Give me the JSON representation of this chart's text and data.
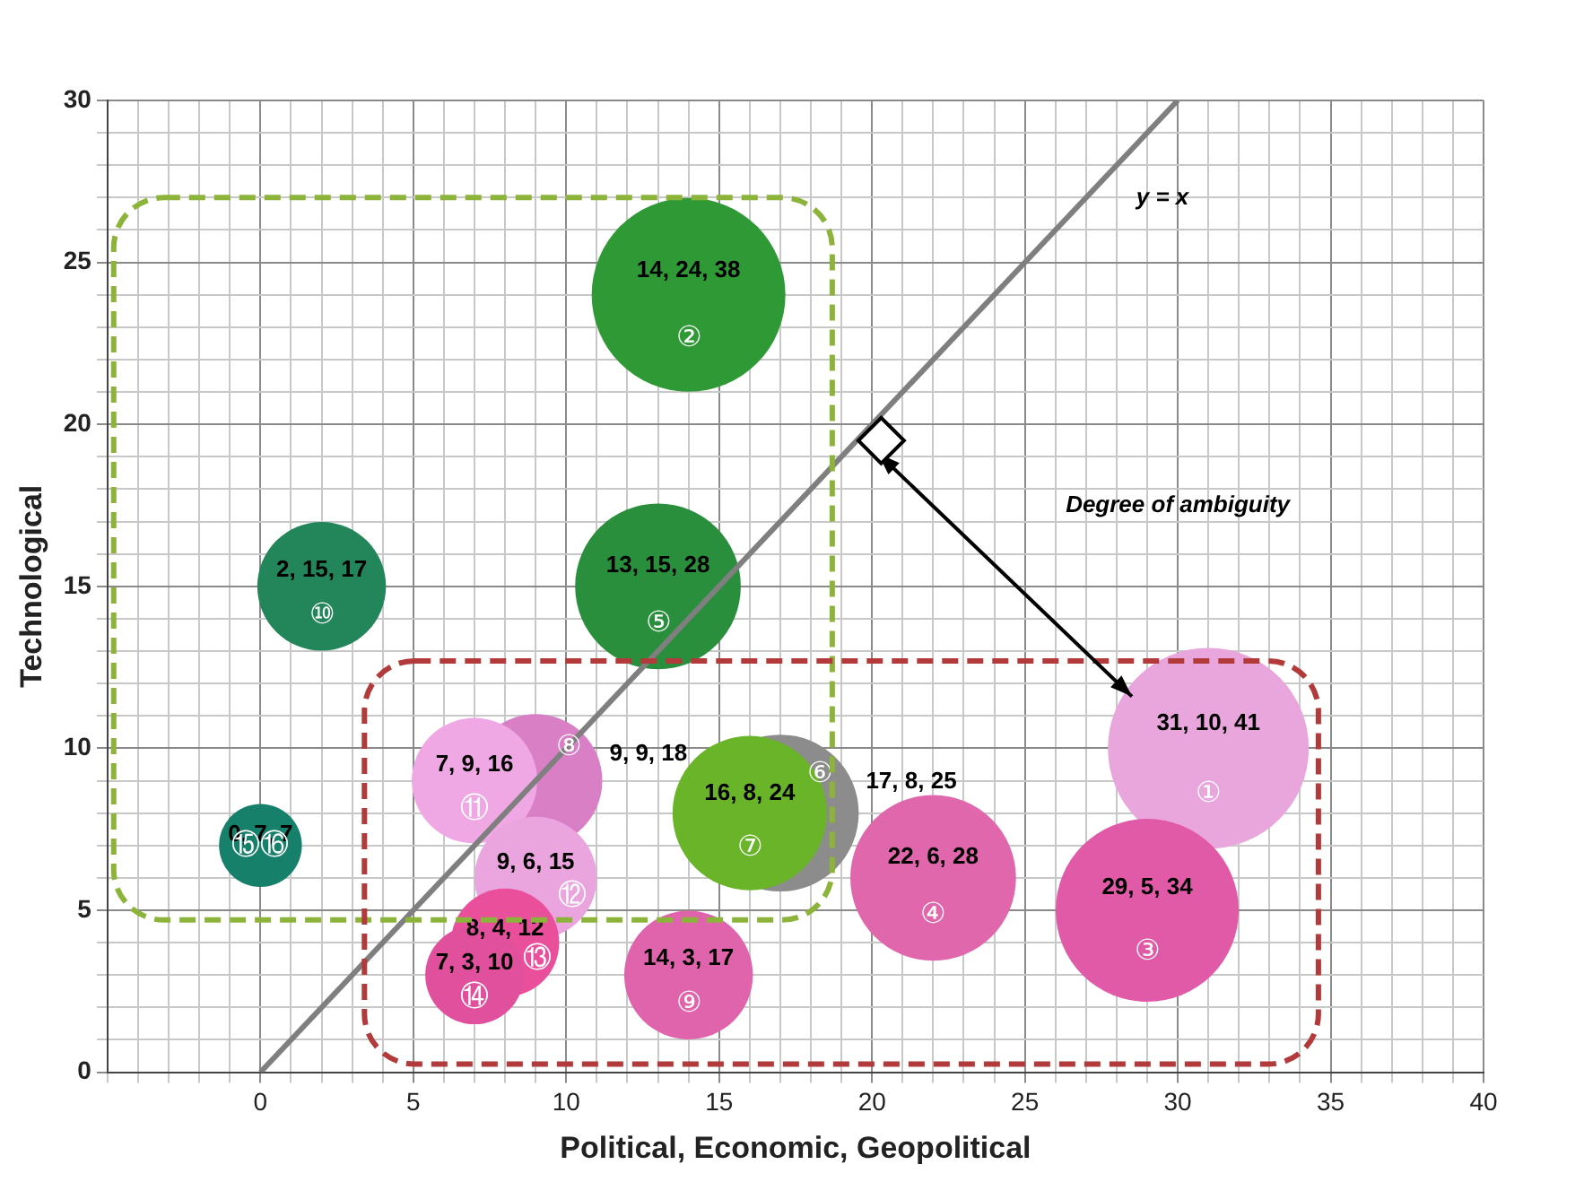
{
  "chart_data": {
    "type": "bubble",
    "xlabel": "Political, Economic, Geopolitical",
    "ylabel": "Technological",
    "xlim": [
      -5,
      40
    ],
    "xticks": [
      0,
      5,
      10,
      15,
      20,
      25,
      30,
      35,
      40
    ],
    "ylim": [
      0,
      30
    ],
    "yticks": [
      0,
      5,
      10,
      15,
      20,
      25,
      30
    ],
    "grid": true,
    "legend": false,
    "series": [
      {
        "x": [
          14,
          13,
          2,
          0,
          null,
          17,
          16,
          31,
          29,
          22,
          14,
          9,
          7,
          9,
          8,
          7
        ],
        "values": [
          24,
          15,
          15,
          7,
          null,
          8,
          8,
          10,
          5,
          6,
          3,
          9,
          9,
          6,
          4,
          3
        ],
        "sizes": [
          0.93,
          0.68,
          0.41,
          0.17,
          null,
          0.61,
          0.59,
          1,
          0.83,
          0.68,
          0.41,
          0.44,
          0.39,
          0.37,
          0.29,
          0.24
        ],
        "colors": [
          "#2f9a35",
          "#2a8f3c",
          "#23865a",
          "#17806a",
          "#17806a",
          "#8c8c8c",
          "#6ab42a",
          "#e8a6dc",
          "#e05aa8",
          "#e067ac",
          "#e064ac",
          "#d97fc6",
          "#f0a8e4",
          "#eaa4de",
          "#ea4f9c",
          "#e0509c"
        ],
        "value_labels": [
          "14, 24, 38",
          "13, 15, 28",
          "2, 15, 17",
          "0, 7, 7",
          null,
          "17, 8, 25",
          "16, 8, 24",
          "31, 10, 41",
          "29, 5, 34",
          "22, 6, 28",
          "14, 3, 17",
          "9, 9, 18",
          "7, 9, 16",
          "9, 6, 15",
          "8, 4, 12",
          "7, 3, 10"
        ]
      },
      {
        "type": "line",
        "x": [
          0,
          30
        ],
        "values": [
          0,
          30
        ],
        "color": "#7f7f7f"
      }
    ],
    "annotations": [
      "y = x",
      "Degree of ambiguity",
      {
        "text": "②",
        "x": 14,
        "y": 24
      },
      {
        "text": "⑤",
        "x": 13,
        "y": 15
      },
      {
        "text": "⑩",
        "x": 2,
        "y": 15
      },
      {
        "text": "⑮",
        "x": 0,
        "y": 7
      },
      {
        "text": "⑯",
        "x": 0,
        "y": 7
      },
      {
        "text": "⑥",
        "x": 17,
        "y": 8
      },
      {
        "text": "⑦",
        "x": 16,
        "y": 8
      },
      {
        "text": "①",
        "x": 31,
        "y": 10
      },
      {
        "text": "③",
        "x": 29,
        "y": 5
      },
      {
        "text": "④",
        "x": 22,
        "y": 6
      },
      {
        "text": "⑨",
        "x": 14,
        "y": 3
      },
      {
        "text": "⑧",
        "x": 9,
        "y": 9
      },
      {
        "text": "⑪",
        "x": 7,
        "y": 9
      },
      {
        "text": "⑫",
        "x": 9,
        "y": 6
      },
      {
        "text": "⑬",
        "x": 8,
        "y": 4
      },
      {
        "text": "⑭",
        "x": 7,
        "y": 3
      }
    ]
  }
}
